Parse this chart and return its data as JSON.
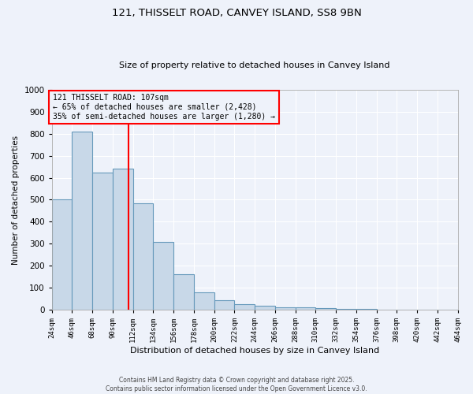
{
  "title": "121, THISSELT ROAD, CANVEY ISLAND, SS8 9BN",
  "subtitle": "Size of property relative to detached houses in Canvey Island",
  "xlabel": "Distribution of detached houses by size in Canvey Island",
  "ylabel": "Number of detached properties",
  "bin_edges": [
    24,
    46,
    68,
    90,
    112,
    134,
    156,
    178,
    200,
    222,
    244,
    266,
    288,
    310,
    332,
    354,
    376,
    398,
    420,
    442,
    464
  ],
  "bin_labels": [
    "24sqm",
    "46sqm",
    "68sqm",
    "90sqm",
    "112sqm",
    "134sqm",
    "156sqm",
    "178sqm",
    "200sqm",
    "222sqm",
    "244sqm",
    "266sqm",
    "288sqm",
    "310sqm",
    "332sqm",
    "354sqm",
    "376sqm",
    "398sqm",
    "420sqm",
    "442sqm",
    "464sqm"
  ],
  "counts": [
    500,
    810,
    625,
    640,
    485,
    310,
    160,
    80,
    45,
    25,
    20,
    12,
    10,
    8,
    5,
    3,
    2,
    1,
    1,
    1
  ],
  "bar_color": "#c8d8e8",
  "bar_edge_color": "#6699bb",
  "ylim": [
    0,
    1000
  ],
  "yticks": [
    0,
    100,
    200,
    300,
    400,
    500,
    600,
    700,
    800,
    900,
    1000
  ],
  "property_size": 107,
  "vline_color": "red",
  "annotation_title": "121 THISSELT ROAD: 107sqm",
  "annotation_line1": "← 65% of detached houses are smaller (2,428)",
  "annotation_line2": "35% of semi-detached houses are larger (1,280) →",
  "annotation_box_color": "red",
  "background_color": "#eef2fa",
  "grid_color": "#ffffff",
  "footer_line1": "Contains HM Land Registry data © Crown copyright and database right 2025.",
  "footer_line2": "Contains public sector information licensed under the Open Government Licence v3.0."
}
